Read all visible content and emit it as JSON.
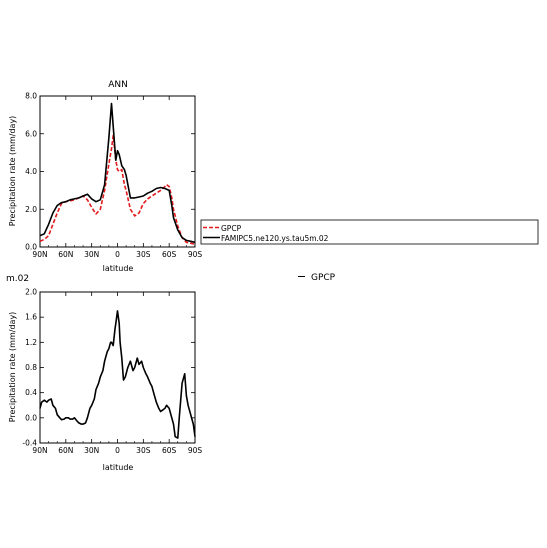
{
  "chart_data": [
    {
      "type": "line",
      "title": "ANN",
      "xlabel": "latitude",
      "ylabel": "Precipitation rate (mm/day)",
      "xlim": [
        90,
        -90
      ],
      "ylim": [
        0,
        8
      ],
      "x_ticks": [
        "90N",
        "60N",
        "30N",
        "0",
        "30S",
        "60S",
        "90S"
      ],
      "y_ticks": [
        "0.0",
        "2.0",
        "4.0",
        "6.0",
        "8.0"
      ],
      "grid": false,
      "legend": {
        "placement": "right, outside plot",
        "entries": [
          "GPCP",
          "FAMIPC5.ne120.ys.tau5m.02"
        ]
      },
      "series": [
        {
          "name": "GPCP",
          "color": "#e31a1c",
          "style": "dashed",
          "x": [
            90,
            85,
            80,
            75,
            70,
            65,
            60,
            55,
            50,
            45,
            40,
            35,
            30,
            25,
            20,
            15,
            10,
            7,
            5,
            2,
            0,
            -2,
            -5,
            -8,
            -10,
            -15,
            -20,
            -25,
            -30,
            -35,
            -40,
            -45,
            -50,
            -55,
            -57,
            -60,
            -63,
            -65,
            -70,
            -75,
            -80,
            -85,
            -90
          ],
          "y": [
            0.3,
            0.4,
            0.6,
            1.2,
            1.8,
            2.3,
            2.4,
            2.45,
            2.5,
            2.6,
            2.7,
            2.5,
            2.1,
            1.75,
            2.0,
            3.0,
            4.4,
            5.2,
            5.9,
            4.6,
            4.1,
            4.0,
            4.1,
            3.3,
            3.0,
            2.0,
            1.65,
            1.8,
            2.3,
            2.55,
            2.7,
            2.85,
            3.0,
            3.2,
            3.3,
            3.2,
            2.6,
            2.0,
            1.1,
            0.5,
            0.25,
            0.2,
            0.15
          ]
        },
        {
          "name": "FAMIPC5.ne120.ys.tau5m.02",
          "color": "#000000",
          "style": "solid",
          "x": [
            90,
            85,
            80,
            75,
            70,
            65,
            60,
            55,
            50,
            45,
            40,
            35,
            30,
            25,
            20,
            15,
            10,
            7,
            5,
            2,
            0,
            -2,
            -5,
            -8,
            -10,
            -15,
            -20,
            -25,
            -30,
            -35,
            -40,
            -45,
            -50,
            -55,
            -60,
            -63,
            -65,
            -70,
            -75,
            -80,
            -85,
            -90
          ],
          "y": [
            0.6,
            0.7,
            1.2,
            1.8,
            2.2,
            2.35,
            2.4,
            2.5,
            2.55,
            2.6,
            2.7,
            2.8,
            2.55,
            2.4,
            2.5,
            3.3,
            5.8,
            7.6,
            6.4,
            4.6,
            5.1,
            4.9,
            4.3,
            4.1,
            3.8,
            2.6,
            2.6,
            2.65,
            2.7,
            2.85,
            2.95,
            3.1,
            3.15,
            3.1,
            3.0,
            2.2,
            1.55,
            0.9,
            0.5,
            0.35,
            0.3,
            0.25
          ]
        }
      ]
    },
    {
      "type": "line",
      "title": "",
      "title_fragment": "m.02",
      "xlabel": "latitude",
      "ylabel": "Precipitation rate (mm/day)",
      "xlim": [
        90,
        -90
      ],
      "ylim": [
        -0.4,
        2.0
      ],
      "x_ticks": [
        "90N",
        "60N",
        "30N",
        "0",
        "30S",
        "60S",
        "90S"
      ],
      "y_ticks": [
        "-0.4",
        "0.0",
        "0.4",
        "0.8",
        "1.2",
        "1.6",
        "2.0"
      ],
      "grid": false,
      "legend": {
        "placement": "right, outside plot",
        "entries": [
          "GPCP"
        ]
      },
      "series": [
        {
          "name": "",
          "color": "#000000",
          "style": "solid",
          "x": [
            90,
            88,
            85,
            82,
            80,
            77,
            75,
            72,
            70,
            67,
            65,
            62,
            60,
            57,
            55,
            52,
            50,
            47,
            45,
            42,
            40,
            37,
            35,
            32,
            30,
            27,
            25,
            22,
            20,
            17,
            15,
            12,
            10,
            8,
            7,
            5,
            3,
            2,
            0,
            -2,
            -3,
            -5,
            -7,
            -9,
            -12,
            -15,
            -18,
            -20,
            -23,
            -25,
            -28,
            -30,
            -33,
            -35,
            -38,
            -40,
            -43,
            -45,
            -48,
            -50,
            -52,
            -55,
            -57,
            -60,
            -62,
            -65,
            -67,
            -70,
            -72,
            -75,
            -78,
            -80,
            -82,
            -85,
            -88,
            -90
          ],
          "y": [
            0.15,
            0.25,
            0.28,
            0.25,
            0.28,
            0.3,
            0.2,
            0.15,
            0.05,
            0.0,
            -0.03,
            -0.02,
            0.0,
            0.0,
            -0.02,
            -0.02,
            0.0,
            -0.05,
            -0.08,
            -0.1,
            -0.1,
            -0.08,
            0.0,
            0.15,
            0.2,
            0.3,
            0.45,
            0.55,
            0.65,
            0.75,
            0.9,
            1.05,
            1.1,
            1.2,
            1.2,
            1.15,
            1.4,
            1.5,
            1.7,
            1.5,
            1.2,
            0.95,
            0.6,
            0.65,
            0.8,
            0.9,
            0.75,
            0.8,
            0.95,
            0.85,
            0.9,
            0.8,
            0.7,
            0.65,
            0.55,
            0.5,
            0.35,
            0.25,
            0.15,
            0.1,
            0.12,
            0.15,
            0.2,
            0.15,
            0.05,
            -0.1,
            -0.3,
            -0.32,
            0.05,
            0.55,
            0.7,
            0.35,
            0.2,
            0.05,
            -0.1,
            -0.3
          ]
        }
      ]
    }
  ]
}
